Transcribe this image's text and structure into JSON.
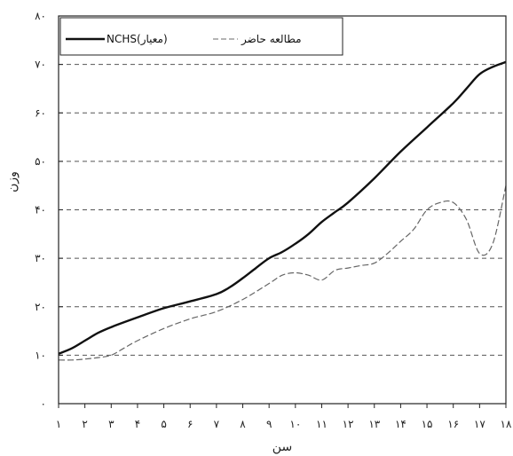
{
  "chart_data": {
    "type": "line",
    "xlabel": "سن",
    "ylabel": "وزن",
    "x": [
      1,
      2,
      3,
      4,
      5,
      6,
      7,
      8,
      9,
      10,
      11,
      12,
      13,
      14,
      15,
      16,
      17,
      18
    ],
    "x_tick_labels": [
      "۱",
      "۲",
      "۳",
      "۴",
      "۵",
      "۶",
      "۷",
      "۸",
      "۹",
      "۱۰",
      "۱۱",
      "۱۲",
      "۱۳",
      "۱۴",
      "۱۵",
      "۱۶",
      "۱۷",
      "۱۸"
    ],
    "y_ticks": [
      0,
      10,
      20,
      30,
      40,
      50,
      60,
      70,
      80
    ],
    "y_tick_labels": [
      "۰",
      "۱۰",
      "۲۰",
      "۳۰",
      "۴۰",
      "۵۰",
      "۶۰",
      "۷۰",
      "۸۰"
    ],
    "xlim": [
      1,
      18
    ],
    "ylim": [
      0,
      80
    ],
    "grid": "horizontal dashed",
    "legend_position": "top-left",
    "series": [
      {
        "name": "NCHS(معیار)",
        "style": "solid",
        "color": "#111111",
        "x": [
          1,
          1.5,
          2,
          2.5,
          3,
          4,
          5,
          6,
          7,
          7.5,
          8,
          8.5,
          9,
          9.5,
          10,
          10.5,
          11,
          11.5,
          12,
          13,
          14,
          15,
          16,
          16.5,
          17,
          17.5,
          18
        ],
        "y": [
          10.3,
          11.4,
          13,
          14.6,
          15.8,
          17.8,
          19.7,
          21.1,
          22.6,
          24,
          25.9,
          28,
          30,
          31.3,
          33,
          35,
          37.5,
          39.5,
          41.5,
          46.5,
          52,
          57,
          62,
          65,
          68,
          69.5,
          70.5
        ]
      },
      {
        "name": "مطالعه حاضر",
        "style": "dashed",
        "color": "#666666",
        "x": [
          1,
          1.5,
          2,
          2.5,
          3,
          3.5,
          4,
          5,
          6,
          7,
          8,
          9,
          9.5,
          10,
          10.5,
          11,
          11.5,
          12,
          12.5,
          13,
          13.5,
          14,
          14.5,
          15,
          15.5,
          16,
          16.5,
          17,
          17.5,
          18
        ],
        "y": [
          9,
          9,
          9.2,
          9.5,
          10,
          11.5,
          13,
          15.5,
          17.5,
          19,
          21.5,
          24.8,
          26.5,
          27,
          26.5,
          25.5,
          27.5,
          28,
          28.5,
          29,
          31,
          33.5,
          36,
          40,
          41.5,
          41.5,
          38,
          31,
          33,
          45
        ]
      }
    ]
  }
}
